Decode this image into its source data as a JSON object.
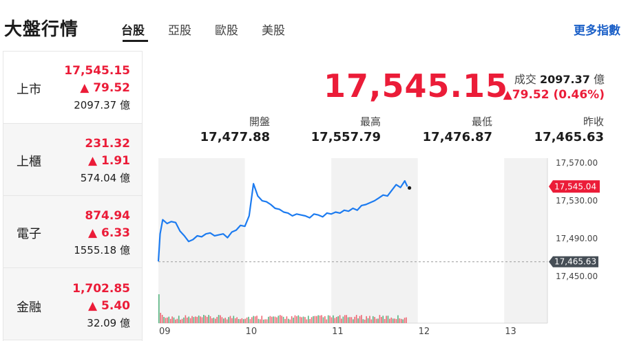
{
  "header": {
    "title": "大盤行情",
    "tabs": [
      {
        "label": "台股",
        "active": true
      },
      {
        "label": "亞股",
        "active": false
      },
      {
        "label": "歐股",
        "active": false
      },
      {
        "label": "美股",
        "active": false
      }
    ],
    "more_label": "更多指數"
  },
  "sidebar": [
    {
      "name": "上市",
      "price": "17,545.15",
      "change": "79.52",
      "volume": "2097.37 億"
    },
    {
      "name": "上櫃",
      "price": "231.32",
      "change": "1.91",
      "volume": "574.04 億"
    },
    {
      "name": "電子",
      "price": "874.94",
      "change": "6.33",
      "volume": "1555.18 億"
    },
    {
      "name": "金融",
      "price": "1,702.85",
      "change": "5.40",
      "volume": "32.09 億"
    }
  ],
  "quote": {
    "price": "17,545.15",
    "volume_label": "成交",
    "volume_value": "2097.37",
    "volume_unit": "億",
    "change": "79.52 (0.46%)",
    "stats": [
      {
        "label": "開盤",
        "value": "17,477.88"
      },
      {
        "label": "最高",
        "value": "17,557.79"
      },
      {
        "label": "最低",
        "value": "17,476.87"
      },
      {
        "label": "昨收",
        "value": "17,465.63"
      }
    ]
  },
  "colors": {
    "up": "#eb1c38",
    "line": "#1c7bf0",
    "link": "#1a5fc7",
    "prev_close": "#464e56"
  },
  "chart_data": {
    "type": "line",
    "x_ticks": [
      "09",
      "10",
      "11",
      "12",
      "13"
    ],
    "y_ticks": [
      "17,570.00",
      "17,530.00",
      "17,490.00",
      "17,450.00"
    ],
    "ylim": [
      17440,
      17575
    ],
    "current_label": "17,545.04",
    "current_value": 17545.04,
    "prev_close_label": "17,465.63",
    "prev_close_value": 17465.63,
    "time_range_hours": [
      9,
      13.5
    ],
    "series": [
      {
        "x": [
          9.0,
          9.02,
          9.05,
          9.1,
          9.15,
          9.2,
          9.25,
          9.3,
          9.35,
          9.4,
          9.45,
          9.5,
          9.55,
          9.6,
          9.65,
          9.7,
          9.75,
          9.8,
          9.85,
          9.9,
          9.95,
          10.0,
          10.05,
          10.1,
          10.15,
          10.2,
          10.25,
          10.3,
          10.35,
          10.4,
          10.45,
          10.5,
          10.55,
          10.6,
          10.65,
          10.7,
          10.75,
          10.8,
          10.85,
          10.9,
          10.95,
          11.0,
          11.05,
          11.1,
          11.15,
          11.2,
          11.25,
          11.3,
          11.35,
          11.4,
          11.45,
          11.5,
          11.55,
          11.6,
          11.65,
          11.7,
          11.75,
          11.8,
          11.85,
          11.88
        ],
        "values": [
          17466,
          17495,
          17510,
          17506,
          17508,
          17507,
          17498,
          17493,
          17487,
          17489,
          17493,
          17492,
          17495,
          17496,
          17493,
          17494,
          17495,
          17491,
          17497,
          17499,
          17504,
          17503,
          17514,
          17548,
          17535,
          17530,
          17529,
          17526,
          17522,
          17521,
          17518,
          17517,
          17514,
          17516,
          17515,
          17514,
          17512,
          17516,
          17515,
          17513,
          17517,
          17516,
          17518,
          17517,
          17520,
          17519,
          17522,
          17520,
          17525,
          17526,
          17528,
          17530,
          17533,
          17536,
          17535,
          17541,
          17547,
          17544,
          17551,
          17545
        ]
      }
    ]
  }
}
